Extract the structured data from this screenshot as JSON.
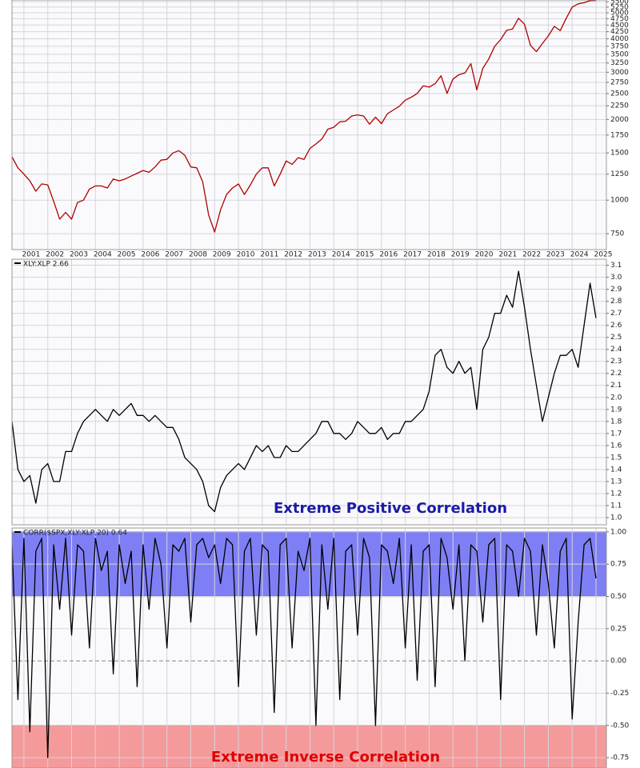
{
  "chart_data": [
    {
      "type": "line",
      "log_scale": true,
      "grid": true,
      "color": "#b00000",
      "categories": [
        null,
        null,
        "2001",
        null,
        null,
        null,
        "2002",
        null,
        null,
        null,
        "2003",
        null,
        null,
        null,
        "2004",
        null,
        null,
        null,
        "2005",
        null,
        null,
        null,
        "2006",
        null,
        null,
        null,
        "2007",
        null,
        null,
        null,
        "2008",
        null,
        null,
        null,
        "2009",
        null,
        null,
        null,
        "2010",
        null,
        null,
        null,
        "2011",
        null,
        null,
        null,
        "2012",
        null,
        null,
        null,
        "2013",
        null,
        null,
        null,
        "2014",
        null,
        null,
        null,
        "2015",
        null,
        null,
        null,
        "2016",
        null,
        null,
        null,
        "2017",
        null,
        null,
        null,
        "2018",
        null,
        null,
        null,
        "2019",
        null,
        null,
        null,
        "2020",
        null,
        null,
        null,
        "2021",
        null,
        null,
        null,
        "2022",
        null,
        null,
        null,
        "2023",
        null,
        null,
        null,
        "2024",
        null,
        null,
        null,
        "2025"
      ],
      "values": [
        1450,
        1320,
        1250,
        1180,
        1080,
        1150,
        1140,
        990,
        850,
        900,
        850,
        980,
        1000,
        1100,
        1130,
        1130,
        1110,
        1200,
        1180,
        1200,
        1230,
        1260,
        1290,
        1270,
        1330,
        1410,
        1420,
        1500,
        1530,
        1470,
        1330,
        1320,
        1170,
        880,
        760,
        920,
        1050,
        1110,
        1150,
        1050,
        1140,
        1250,
        1320,
        1320,
        1130,
        1250,
        1400,
        1360,
        1440,
        1420,
        1560,
        1620,
        1690,
        1840,
        1870,
        1960,
        1970,
        2060,
        2080,
        2060,
        1920,
        2040,
        1930,
        2100,
        2170,
        2240,
        2360,
        2420,
        2500,
        2670,
        2640,
        2720,
        2910,
        2500,
        2830,
        2940,
        2980,
        3230,
        2580,
        3100,
        3360,
        3750,
        3970,
        4300,
        4350,
        4770,
        4530,
        3780,
        3580,
        3840,
        4100,
        4450,
        4290,
        4770,
        5250,
        5400,
        5450,
        5550,
        5560
      ],
      "ylim": [
        654,
        5580
      ],
      "yticks": [
        750,
        1000,
        1250,
        1500,
        1750,
        2000,
        2250,
        2500,
        2750,
        3000,
        3250,
        3500,
        3750,
        4000,
        4250,
        4500,
        4750,
        5000,
        5250,
        5500
      ]
    },
    {
      "type": "line",
      "grid": true,
      "series": [
        {
          "name": "XLY:XLP 2.66",
          "color": "#000000",
          "values": [
            1.8,
            1.4,
            1.3,
            1.35,
            1.12,
            1.4,
            1.45,
            1.3,
            1.3,
            1.55,
            1.55,
            1.7,
            1.8,
            1.85,
            1.9,
            1.85,
            1.8,
            1.9,
            1.85,
            1.9,
            1.95,
            1.85,
            1.85,
            1.8,
            1.85,
            1.8,
            1.75,
            1.75,
            1.65,
            1.5,
            1.45,
            1.4,
            1.3,
            1.1,
            1.05,
            1.25,
            1.35,
            1.4,
            1.45,
            1.4,
            1.5,
            1.6,
            1.55,
            1.6,
            1.5,
            1.5,
            1.6,
            1.55,
            1.55,
            1.6,
            1.65,
            1.7,
            1.8,
            1.8,
            1.7,
            1.7,
            1.65,
            1.7,
            1.8,
            1.75,
            1.7,
            1.7,
            1.75,
            1.65,
            1.7,
            1.7,
            1.8,
            1.8,
            1.85,
            1.9,
            2.05,
            2.35,
            2.4,
            2.25,
            2.2,
            2.3,
            2.2,
            2.25,
            1.9,
            2.4,
            2.5,
            2.7,
            2.7,
            2.85,
            2.75,
            3.05,
            2.75,
            2.4,
            2.1,
            1.8,
            2.0,
            2.2,
            2.35,
            2.35,
            2.4,
            2.25,
            2.6,
            2.95,
            2.66
          ]
        }
      ],
      "ylim": [
        0.94,
        3.15
      ],
      "yticks": [
        {
          "value": 1.0,
          "label": "1.0"
        },
        1.1,
        1.2,
        1.3,
        1.4,
        1.5,
        1.6,
        1.7,
        1.8,
        1.9,
        {
          "value": 2.0,
          "label": "2.0"
        },
        2.1,
        2.2,
        2.3,
        2.4,
        2.5,
        2.6,
        2.7,
        2.8,
        2.9,
        {
          "value": 3.0,
          "label": "3.0"
        },
        3.1
      ],
      "annotation": "Extreme Positive Correlation",
      "annotation_color": "#1a1aa8"
    },
    {
      "type": "line",
      "grid": true,
      "zero_line": true,
      "series": [
        {
          "name": "CORR($SPX,XLY:XLP,20) 0.64",
          "color": "#000000",
          "values": [
            0.9,
            -0.3,
            0.95,
            -0.55,
            0.85,
            0.95,
            -0.75,
            0.9,
            0.4,
            0.95,
            0.2,
            0.9,
            0.85,
            0.1,
            0.95,
            0.7,
            0.85,
            -0.1,
            0.9,
            0.6,
            0.85,
            -0.2,
            0.9,
            0.4,
            0.95,
            0.75,
            0.1,
            0.9,
            0.85,
            0.95,
            0.3,
            0.9,
            0.95,
            0.8,
            0.9,
            0.6,
            0.95,
            0.9,
            -0.2,
            0.85,
            0.95,
            0.2,
            0.9,
            0.85,
            -0.4,
            0.9,
            0.95,
            0.1,
            0.85,
            0.7,
            0.95,
            -0.5,
            0.9,
            0.4,
            0.95,
            -0.3,
            0.85,
            0.9,
            0.2,
            0.95,
            0.8,
            -0.5,
            0.9,
            0.85,
            0.6,
            0.95,
            0.1,
            0.9,
            -0.15,
            0.85,
            0.9,
            -0.2,
            0.95,
            0.8,
            0.4,
            0.9,
            0.0,
            0.9,
            0.85,
            0.3,
            0.9,
            0.95,
            -0.3,
            0.9,
            0.85,
            0.5,
            0.95,
            0.85,
            0.2,
            0.9,
            0.6,
            0.1,
            0.85,
            0.95,
            -0.45,
            0.3,
            0.9,
            0.95,
            0.64
          ]
        }
      ],
      "ylim": [
        -0.83,
        1.03
      ],
      "yticks": [
        -0.75,
        {
          "value": -0.5,
          "label": "-0.50"
        },
        -0.25,
        {
          "value": 0,
          "label": "0.00"
        },
        0.25,
        {
          "value": 0.5,
          "label": "0.50"
        },
        0.75,
        {
          "value": 1,
          "label": "1.00"
        }
      ],
      "bands": [
        {
          "from": 0.5,
          "to": 1,
          "color": "#7f7ff5",
          "border": "#2a2ac8"
        },
        {
          "from": -0.5,
          "to": -1,
          "color": "#f59a9a",
          "border": "#e06060"
        }
      ],
      "annotation": "Extreme Inverse Correlation",
      "annotation_color": "#e00000"
    }
  ]
}
